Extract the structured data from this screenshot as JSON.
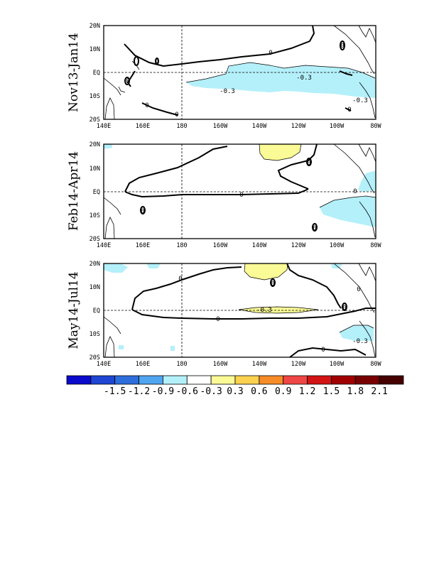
{
  "panels": [
    {
      "label": "Nov13-Jan14",
      "contour_labels": [
        "0",
        "0",
        "0",
        "0",
        "0",
        "0",
        "0",
        "-0.3",
        "-0.3",
        "-0.3"
      ],
      "shading": [
        {
          "value_class": "-0.3",
          "color": "#b4f0fa"
        }
      ]
    },
    {
      "label": "Feb14-Apr14",
      "contour_labels": [
        "0",
        "0",
        "0",
        "0",
        "0"
      ],
      "shading": [
        {
          "value_class": "0.3",
          "color": "#fafa96"
        },
        {
          "value_class": "-0.3",
          "color": "#b4f0fa"
        }
      ]
    },
    {
      "label": "May14-Jul14",
      "contour_labels": [
        "0",
        "0",
        "0",
        "0",
        "0",
        "0",
        "-0.3",
        "-0.3"
      ],
      "shading": [
        {
          "value_class": "0.3",
          "color": "#fafa96"
        },
        {
          "value_class": "-0.3",
          "color": "#b4f0fa"
        }
      ]
    }
  ],
  "axes": {
    "x_ticks": [
      "140E",
      "160E",
      "180",
      "160W",
      "140W",
      "120W",
      "100W",
      "80W"
    ],
    "y_ticks": [
      "20N",
      "10N",
      "EQ",
      "10S",
      "20S"
    ]
  },
  "colorbar": {
    "colors": [
      "#0a0acd",
      "#1e46d2",
      "#2d6edc",
      "#50a5f0",
      "#b4f0fa",
      "#ffffff",
      "#fafa96",
      "#fad250",
      "#f58c28",
      "#f04646",
      "#d21414",
      "#a00000",
      "#780000",
      "#460000"
    ],
    "labels": [
      "-1.5",
      "-1.2",
      "-0.9",
      "-0.6",
      "-0.3",
      "0.3",
      "0.6",
      "0.9",
      "1.2",
      "1.5",
      "1.8",
      "2.1"
    ]
  }
}
